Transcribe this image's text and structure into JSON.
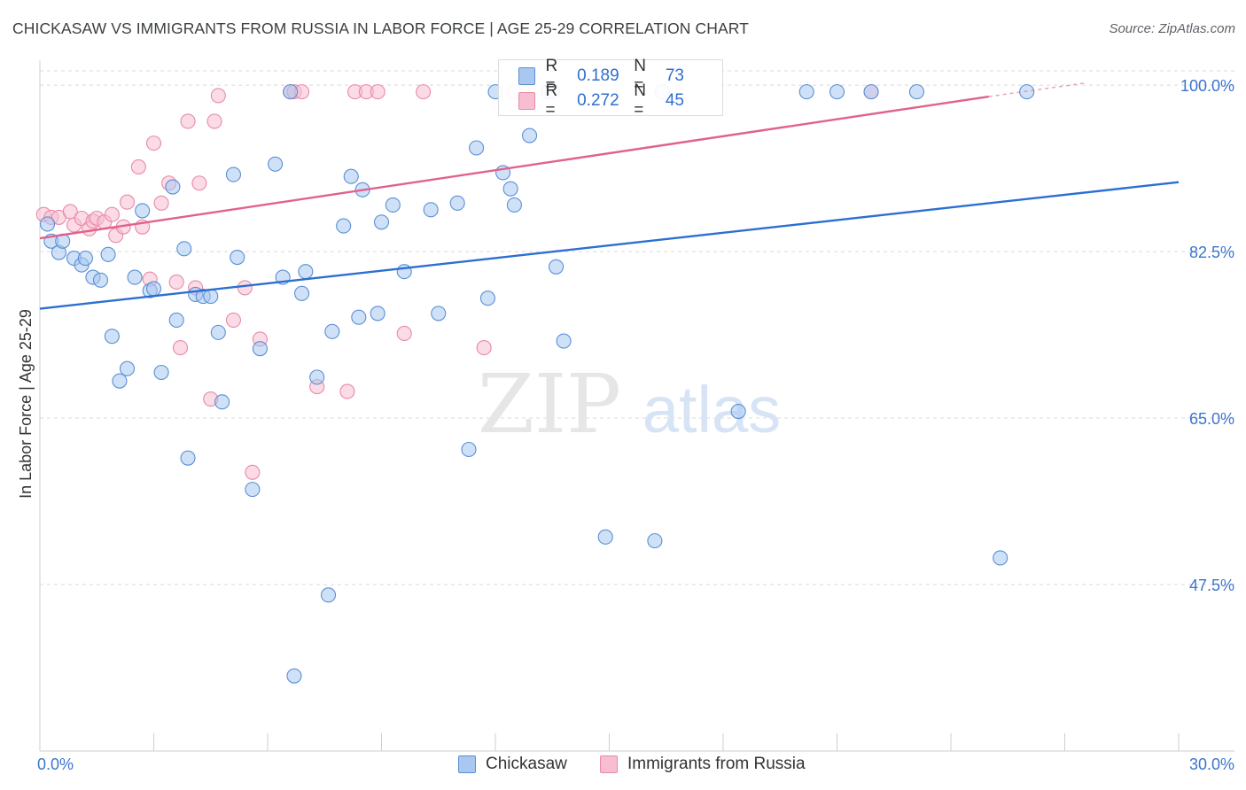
{
  "title": "CHICKASAW VS IMMIGRANTS FROM RUSSIA IN LABOR FORCE | AGE 25-29 CORRELATION CHART",
  "source": "Source: ZipAtlas.com",
  "watermark": {
    "zip": "ZIP",
    "atlas": "atlas"
  },
  "colors": {
    "blue_fill": "#a8c8f0",
    "blue_stroke": "#5b8fd6",
    "blue_line": "#2b6fd1",
    "pink_fill": "#f7bdd0",
    "pink_stroke": "#e88aa8",
    "pink_line": "#e0628a",
    "axis_label": "#3b74d0",
    "grid": "#d9d9d9"
  },
  "legend": {
    "rows": [
      {
        "r_label": "R =",
        "r_value": "0.189",
        "n_label": "N =",
        "n_value": "73"
      },
      {
        "r_label": "R =",
        "r_value": "0.272",
        "n_label": "N =",
        "n_value": "45"
      }
    ],
    "bottom": [
      "Chickasaw",
      "Immigrants from Russia"
    ]
  },
  "chart_data": {
    "type": "scatter",
    "title": "CHICKASAW VS IMMIGRANTS FROM RUSSIA IN LABOR FORCE | AGE 25-29 CORRELATION CHART",
    "xlabel": "",
    "ylabel": "In Labor Force | Age 25-29",
    "xlim": [
      0,
      30
    ],
    "ylim": [
      30,
      101.5
    ],
    "x_tick_labels": [
      "0.0%",
      "30.0%"
    ],
    "y_ticks": [
      47.5,
      65.0,
      82.5,
      100.0
    ],
    "y_tick_labels": [
      "47.5%",
      "65.0%",
      "82.5%",
      "100.0%"
    ],
    "series": [
      {
        "name": "Chickasaw",
        "color": "blue",
        "trend": {
          "x": [
            0,
            30
          ],
          "y": [
            76.5,
            89.8
          ]
        },
        "points": [
          [
            0.2,
            85.4
          ],
          [
            0.3,
            83.6
          ],
          [
            0.5,
            82.4
          ],
          [
            0.6,
            83.6
          ],
          [
            0.9,
            81.8
          ],
          [
            1.1,
            81.1
          ],
          [
            1.2,
            81.8
          ],
          [
            1.4,
            79.8
          ],
          [
            1.6,
            79.5
          ],
          [
            1.8,
            82.2
          ],
          [
            1.9,
            73.6
          ],
          [
            2.1,
            68.9
          ],
          [
            2.3,
            70.2
          ],
          [
            2.5,
            79.8
          ],
          [
            2.7,
            86.8
          ],
          [
            2.9,
            78.4
          ],
          [
            3.0,
            78.6
          ],
          [
            3.2,
            69.8
          ],
          [
            3.5,
            89.3
          ],
          [
            3.6,
            75.3
          ],
          [
            3.8,
            82.8
          ],
          [
            3.9,
            60.8
          ],
          [
            4.1,
            78.0
          ],
          [
            4.3,
            77.8
          ],
          [
            4.5,
            77.8
          ],
          [
            4.7,
            74.0
          ],
          [
            4.8,
            66.7
          ],
          [
            5.1,
            90.6
          ],
          [
            5.2,
            81.9
          ],
          [
            5.6,
            57.5
          ],
          [
            5.8,
            72.3
          ],
          [
            6.2,
            91.7
          ],
          [
            6.4,
            79.8
          ],
          [
            6.6,
            99.3
          ],
          [
            6.7,
            37.9
          ],
          [
            6.9,
            78.1
          ],
          [
            7.0,
            80.4
          ],
          [
            7.3,
            69.3
          ],
          [
            7.6,
            46.4
          ],
          [
            7.7,
            74.1
          ],
          [
            8.0,
            85.2
          ],
          [
            8.2,
            90.4
          ],
          [
            8.4,
            75.6
          ],
          [
            8.5,
            89.0
          ],
          [
            8.9,
            76.0
          ],
          [
            9.0,
            85.6
          ],
          [
            9.3,
            87.4
          ],
          [
            9.6,
            80.4
          ],
          [
            10.3,
            86.9
          ],
          [
            10.5,
            76.0
          ],
          [
            11.0,
            87.6
          ],
          [
            11.3,
            61.7
          ],
          [
            11.5,
            93.4
          ],
          [
            11.8,
            77.6
          ],
          [
            12.0,
            99.3
          ],
          [
            12.2,
            90.8
          ],
          [
            12.4,
            89.1
          ],
          [
            12.5,
            87.4
          ],
          [
            12.9,
            94.7
          ],
          [
            13.4,
            99.3
          ],
          [
            13.5,
            99.3
          ],
          [
            13.6,
            80.9
          ],
          [
            13.8,
            73.1
          ],
          [
            14.9,
            52.5
          ],
          [
            16.2,
            52.1
          ],
          [
            16.4,
            99.3
          ],
          [
            18.4,
            65.7
          ],
          [
            20.2,
            99.3
          ],
          [
            21.0,
            99.3
          ],
          [
            21.9,
            99.3
          ],
          [
            23.1,
            99.3
          ],
          [
            25.3,
            50.3
          ],
          [
            26.0,
            99.3
          ]
        ]
      },
      {
        "name": "Immigrants from Russia",
        "color": "pink",
        "trend": {
          "x": [
            0,
            25
          ],
          "y": [
            83.9,
            98.8
          ]
        },
        "trend_dashed_to": {
          "x": 27.5,
          "y": 100.2
        },
        "points": [
          [
            0.1,
            86.4
          ],
          [
            0.3,
            86.1
          ],
          [
            0.5,
            86.1
          ],
          [
            0.8,
            86.7
          ],
          [
            0.9,
            85.3
          ],
          [
            1.1,
            86.0
          ],
          [
            1.3,
            84.9
          ],
          [
            1.4,
            85.7
          ],
          [
            1.5,
            86.0
          ],
          [
            1.7,
            85.6
          ],
          [
            1.9,
            86.4
          ],
          [
            2.0,
            84.2
          ],
          [
            2.2,
            85.1
          ],
          [
            2.3,
            87.7
          ],
          [
            2.6,
            91.4
          ],
          [
            2.7,
            85.1
          ],
          [
            2.9,
            79.6
          ],
          [
            3.0,
            93.9
          ],
          [
            3.2,
            87.6
          ],
          [
            3.4,
            89.7
          ],
          [
            3.6,
            79.3
          ],
          [
            3.7,
            72.4
          ],
          [
            3.9,
            96.2
          ],
          [
            4.1,
            78.7
          ],
          [
            4.2,
            89.7
          ],
          [
            4.5,
            67.0
          ],
          [
            4.6,
            96.2
          ],
          [
            4.7,
            98.9
          ],
          [
            5.1,
            75.3
          ],
          [
            5.4,
            78.7
          ],
          [
            5.6,
            59.3
          ],
          [
            5.8,
            73.3
          ],
          [
            6.6,
            99.3
          ],
          [
            6.7,
            99.3
          ],
          [
            6.9,
            99.3
          ],
          [
            7.3,
            68.3
          ],
          [
            8.1,
            67.8
          ],
          [
            8.3,
            99.3
          ],
          [
            8.6,
            99.3
          ],
          [
            8.9,
            99.3
          ],
          [
            9.6,
            73.9
          ],
          [
            10.1,
            99.3
          ],
          [
            11.7,
            72.4
          ],
          [
            12.5,
            99.3
          ],
          [
            21.9,
            99.3
          ]
        ]
      }
    ]
  }
}
